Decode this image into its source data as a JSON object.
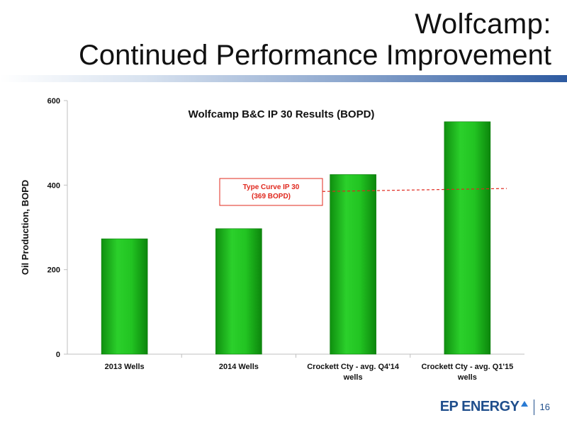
{
  "slide": {
    "title_line1": "Wolfcamp:",
    "title_line2": "Continued Performance Improvement",
    "page_number": "16",
    "logo_text": "EP ENERGY"
  },
  "chart_data": {
    "type": "bar",
    "title": "Wolfcamp B&C IP 30 Results (BOPD)",
    "xlabel": "",
    "ylabel": "Oil Production, BOPD",
    "ylim": [
      0,
      600
    ],
    "yticks": [
      0,
      200,
      400,
      600
    ],
    "grid": false,
    "categories": [
      [
        "2013 Wells"
      ],
      [
        "2014 Wells"
      ],
      [
        "Crockett Cty -  avg. Q4'14",
        "wells"
      ],
      [
        "Crockett Cty -  avg. Q1'15",
        "wells"
      ]
    ],
    "values": [
      273,
      297,
      425,
      550
    ],
    "bar_color": "#1db81d",
    "reference_line": {
      "value_start": 385,
      "value_end": 392,
      "label_lines": [
        "Type Curve IP 30",
        "(369 BOPD)"
      ],
      "color": "#e0281e"
    }
  }
}
